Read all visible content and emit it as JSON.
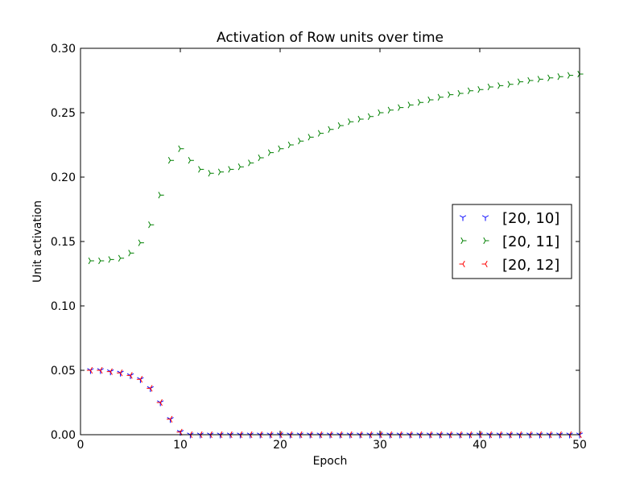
{
  "chart_data": {
    "type": "scatter",
    "title": "Activation of Row units over time",
    "xlabel": "Epoch",
    "ylabel": "Unit activation",
    "xlim": [
      0,
      50
    ],
    "ylim": [
      0.0,
      0.3
    ],
    "x_ticks": [
      "0",
      "10",
      "20",
      "30",
      "40",
      "50"
    ],
    "y_ticks": [
      "0.00",
      "0.05",
      "0.10",
      "0.15",
      "0.20",
      "0.25",
      "0.30"
    ],
    "grid": false,
    "legend_position": "center-right",
    "series": [
      {
        "name": "[20, 10]",
        "marker": "tri-down",
        "color": "#0000ff",
        "x": [
          1,
          2,
          3,
          4,
          5,
          6,
          7,
          8,
          9,
          10,
          11,
          12,
          13,
          14,
          15,
          16,
          17,
          18,
          19,
          20,
          21,
          22,
          23,
          24,
          25,
          26,
          27,
          28,
          29,
          30,
          31,
          32,
          33,
          34,
          35,
          36,
          37,
          38,
          39,
          40,
          41,
          42,
          43,
          44,
          45,
          46,
          47,
          48,
          49,
          50
        ],
        "values": [
          0.05,
          0.05,
          0.049,
          0.048,
          0.046,
          0.043,
          0.036,
          0.025,
          0.012,
          0.002,
          0,
          0,
          0,
          0,
          0,
          0,
          0,
          0,
          0,
          0,
          0,
          0,
          0,
          0,
          0,
          0,
          0,
          0,
          0,
          0,
          0,
          0,
          0,
          0,
          0,
          0,
          0,
          0,
          0,
          0,
          0,
          0,
          0,
          0,
          0,
          0,
          0,
          0,
          0,
          0
        ]
      },
      {
        "name": "[20, 11]",
        "marker": "tri-right",
        "color": "#008000",
        "x": [
          1,
          2,
          3,
          4,
          5,
          6,
          7,
          8,
          9,
          10,
          11,
          12,
          13,
          14,
          15,
          16,
          17,
          18,
          19,
          20,
          21,
          22,
          23,
          24,
          25,
          26,
          27,
          28,
          29,
          30,
          31,
          32,
          33,
          34,
          35,
          36,
          37,
          38,
          39,
          40,
          41,
          42,
          43,
          44,
          45,
          46,
          47,
          48,
          49,
          50
        ],
        "values": [
          0.135,
          0.135,
          0.136,
          0.137,
          0.141,
          0.149,
          0.163,
          0.186,
          0.213,
          0.222,
          0.213,
          0.206,
          0.203,
          0.204,
          0.206,
          0.208,
          0.211,
          0.215,
          0.219,
          0.222,
          0.225,
          0.228,
          0.231,
          0.234,
          0.237,
          0.24,
          0.243,
          0.245,
          0.247,
          0.25,
          0.252,
          0.254,
          0.256,
          0.258,
          0.26,
          0.262,
          0.264,
          0.265,
          0.267,
          0.268,
          0.27,
          0.271,
          0.272,
          0.274,
          0.275,
          0.276,
          0.277,
          0.278,
          0.279,
          0.28
        ]
      },
      {
        "name": "[20, 12]",
        "marker": "tri-left",
        "color": "#ff0000",
        "x": [
          1,
          2,
          3,
          4,
          5,
          6,
          7,
          8,
          9,
          10,
          11,
          12,
          13,
          14,
          15,
          16,
          17,
          18,
          19,
          20,
          21,
          22,
          23,
          24,
          25,
          26,
          27,
          28,
          29,
          30,
          31,
          32,
          33,
          34,
          35,
          36,
          37,
          38,
          39,
          40,
          41,
          42,
          43,
          44,
          45,
          46,
          47,
          48,
          49,
          50
        ],
        "values": [
          0.05,
          0.05,
          0.049,
          0.048,
          0.046,
          0.043,
          0.036,
          0.025,
          0.012,
          0.002,
          0,
          0,
          0,
          0,
          0,
          0,
          0,
          0,
          0,
          0,
          0,
          0,
          0,
          0,
          0,
          0,
          0,
          0,
          0,
          0,
          0,
          0,
          0,
          0,
          0,
          0,
          0,
          0,
          0,
          0,
          0,
          0,
          0,
          0,
          0,
          0,
          0,
          0,
          0,
          0
        ]
      }
    ]
  }
}
